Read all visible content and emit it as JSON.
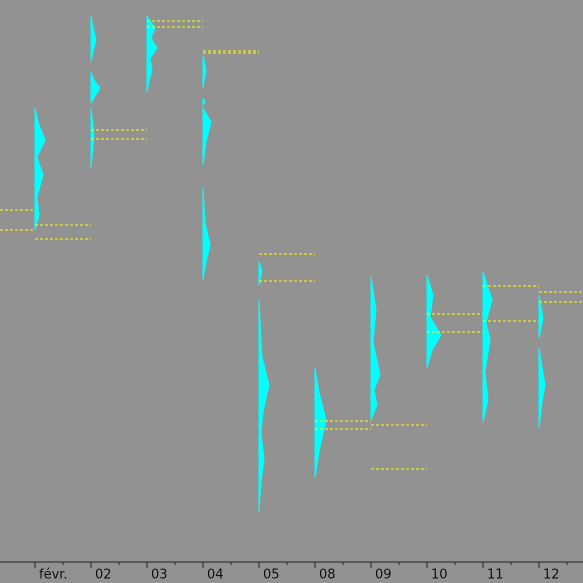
{
  "chart_data": {
    "type": "profile",
    "categories": [
      "févr.",
      "02",
      "03",
      "04",
      "05",
      "08",
      "09",
      "10",
      "11",
      "12"
    ],
    "ylim": [
      0,
      562
    ],
    "profile_color": "#00ffff",
    "level_color": "#ffff00",
    "prior_levels": [
      352,
      332
    ],
    "days": [
      {
        "pieces": [
          {
            "prices": [
              332,
              347,
              365,
              387,
              405,
              422,
              440,
              454
            ],
            "volumes": [
              0,
              4,
              2,
              8,
              2,
              10,
              3,
              0
            ]
          }
        ],
        "levels": [
          337,
          323
        ]
      },
      {
        "pieces": [
          {
            "prices": [
              500,
              510,
              522,
              535,
              546
            ],
            "volumes": [
              0,
              2,
              5,
              2,
              0
            ]
          },
          {
            "prices": [
              459,
              466,
              474,
              482,
              490
            ],
            "volumes": [
              0,
              4,
              9,
              3,
              0
            ]
          },
          {
            "prices": [
              394,
              427,
              454
            ],
            "volumes": [
              0,
              3,
              0
            ]
          }
        ],
        "levels": [
          432,
          423
        ]
      },
      {
        "pieces": [
          {
            "prices": [
              470,
              481,
              492,
              503,
              514,
              524,
              534,
              546
            ],
            "volumes": [
              0,
              2,
              5,
              3,
              10,
              4,
              8,
              0
            ]
          }
        ],
        "levels": [
          541,
          535
        ]
      },
      {
        "pieces": [
          {
            "prices": [
              474,
              492,
              507
            ],
            "volumes": [
              0,
              3,
              0
            ]
          },
          {
            "prices": [
              457,
              460,
              464
            ],
            "volumes": [
              0,
              2,
              0
            ]
          },
          {
            "prices": [
              397,
              420,
              440,
              454
            ],
            "volumes": [
              0,
              3,
              8,
              0
            ]
          },
          {
            "prices": [
              282,
              300,
              317,
              340,
              374
            ],
            "volumes": [
              0,
              3,
              7,
              2,
              0
            ]
          }
        ],
        "levels": [
          511,
          509
        ]
      },
      {
        "pieces": [
          {
            "prices": [
              277,
              292,
              300
            ],
            "volumes": [
              0,
              3,
              0
            ]
          },
          {
            "prices": [
              50,
              80,
              102,
              130,
              150,
              177,
              205,
              262
            ],
            "volumes": [
              0,
              2,
              5,
              2,
              4,
              10,
              3,
              0
            ]
          }
        ],
        "levels": [
          308,
          281
        ]
      },
      {
        "pieces": [
          {
            "prices": [
              84,
              110,
              142,
              170,
              194
            ],
            "volumes": [
              0,
              4,
              11,
              4,
              0
            ]
          }
        ],
        "levels": [
          141,
          133
        ]
      },
      {
        "pieces": [
          {
            "prices": [
              142,
              157,
              172,
              187,
              220,
              252,
              285
            ],
            "volumes": [
              0,
              6,
              3,
              9,
              2,
              5,
              0
            ]
          }
        ],
        "levels": [
          137,
          93
        ]
      },
      {
        "pieces": [
          {
            "prices": [
              194,
              212,
              227,
              245,
              267,
              287
            ],
            "volumes": [
              0,
              5,
              14,
              3,
              6,
              0
            ]
          }
        ],
        "levels": [
          248,
          230
        ]
      },
      {
        "pieces": [
          {
            "prices": [
              140,
              162,
              190,
              222,
              240,
              262,
              290
            ],
            "volumes": [
              0,
              5,
              2,
              7,
              3,
              9,
              0
            ]
          }
        ],
        "levels": [
          276,
          241
        ]
      },
      {
        "pieces": [
          {
            "prices": [
              224,
              244,
              267
            ],
            "volumes": [
              0,
              4,
              0
            ]
          },
          {
            "prices": [
              134,
              160,
              177,
              195,
              214
            ],
            "volumes": [
              0,
              3,
              6,
              3,
              0
            ]
          }
        ],
        "levels": [
          270,
          260
        ]
      }
    ]
  }
}
